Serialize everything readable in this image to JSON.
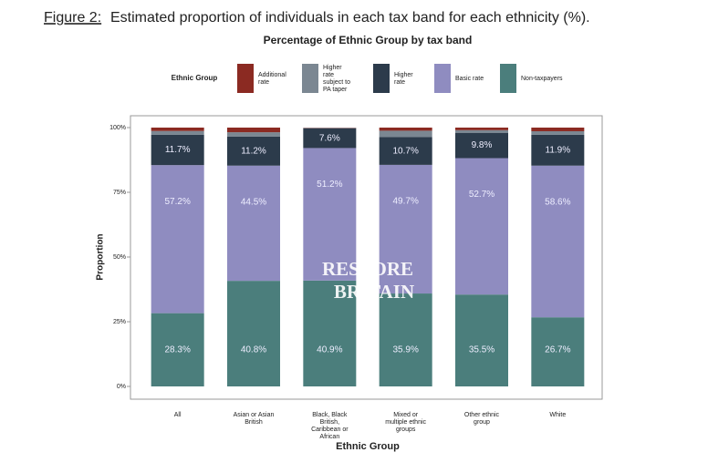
{
  "figure_label": "Figure 2:",
  "caption": "Estimated proportion of individuals in each tax band for each ethnicity (%).",
  "watermark": [
    "RESTORE",
    "BRITAIN"
  ],
  "chart_data": {
    "type": "stacked_bar",
    "title": "Percentage of Ethnic Group by tax band",
    "legend_title": "Ethnic Group",
    "legend_position": "top",
    "x_label": "Ethnic Group",
    "y_label": "Proportion",
    "categories": [
      "All",
      "Asian or Asian\nBritish",
      "Black, Black\nBritish,\nCaribbean or\nAfrican",
      "Mixed or\nmultiple ethnic\ngroups",
      "Other ethnic\ngroup",
      "White"
    ],
    "series": [
      {
        "name": "Additional\nrate",
        "color": "#8b2a22",
        "values": [
          1.3,
          1.8,
          0.1,
          1.2,
          1.0,
          1.4
        ]
      },
      {
        "name": "Higher\nrate\nsubject to\nPA taper",
        "color": "#7b8792",
        "values": [
          1.5,
          1.7,
          0.2,
          2.5,
          1.0,
          1.4
        ]
      },
      {
        "name": "Higher\nrate",
        "color": "#2c3b4b",
        "values": [
          11.7,
          11.2,
          7.6,
          10.7,
          9.8,
          11.9
        ],
        "value_labels": [
          "11.7%",
          "11.2%",
          "7.6%",
          "10.7%",
          "9.8%",
          "11.9%"
        ]
      },
      {
        "name": "Basic rate",
        "color": "#8f8cc0",
        "values": [
          57.2,
          44.5,
          51.2,
          49.7,
          52.7,
          58.6
        ],
        "value_labels": [
          "57.2%",
          "44.5%",
          "51.2%",
          "49.7%",
          "52.7%",
          "58.6%"
        ]
      },
      {
        "name": "Non-taxpayers",
        "color": "#4b7e7c",
        "values": [
          28.3,
          40.8,
          40.9,
          35.9,
          35.5,
          26.7
        ],
        "value_labels": [
          "28.3%",
          "40.8%",
          "40.9%",
          "35.9%",
          "35.5%",
          "26.7%"
        ]
      }
    ],
    "ylim": [
      0,
      100
    ],
    "yticks": [
      {
        "value": 0,
        "label": "0%"
      },
      {
        "value": 25,
        "label": "25%"
      },
      {
        "value": 50,
        "label": "50%"
      },
      {
        "value": 75,
        "label": "75%"
      },
      {
        "value": 100,
        "label": "100%"
      }
    ]
  }
}
